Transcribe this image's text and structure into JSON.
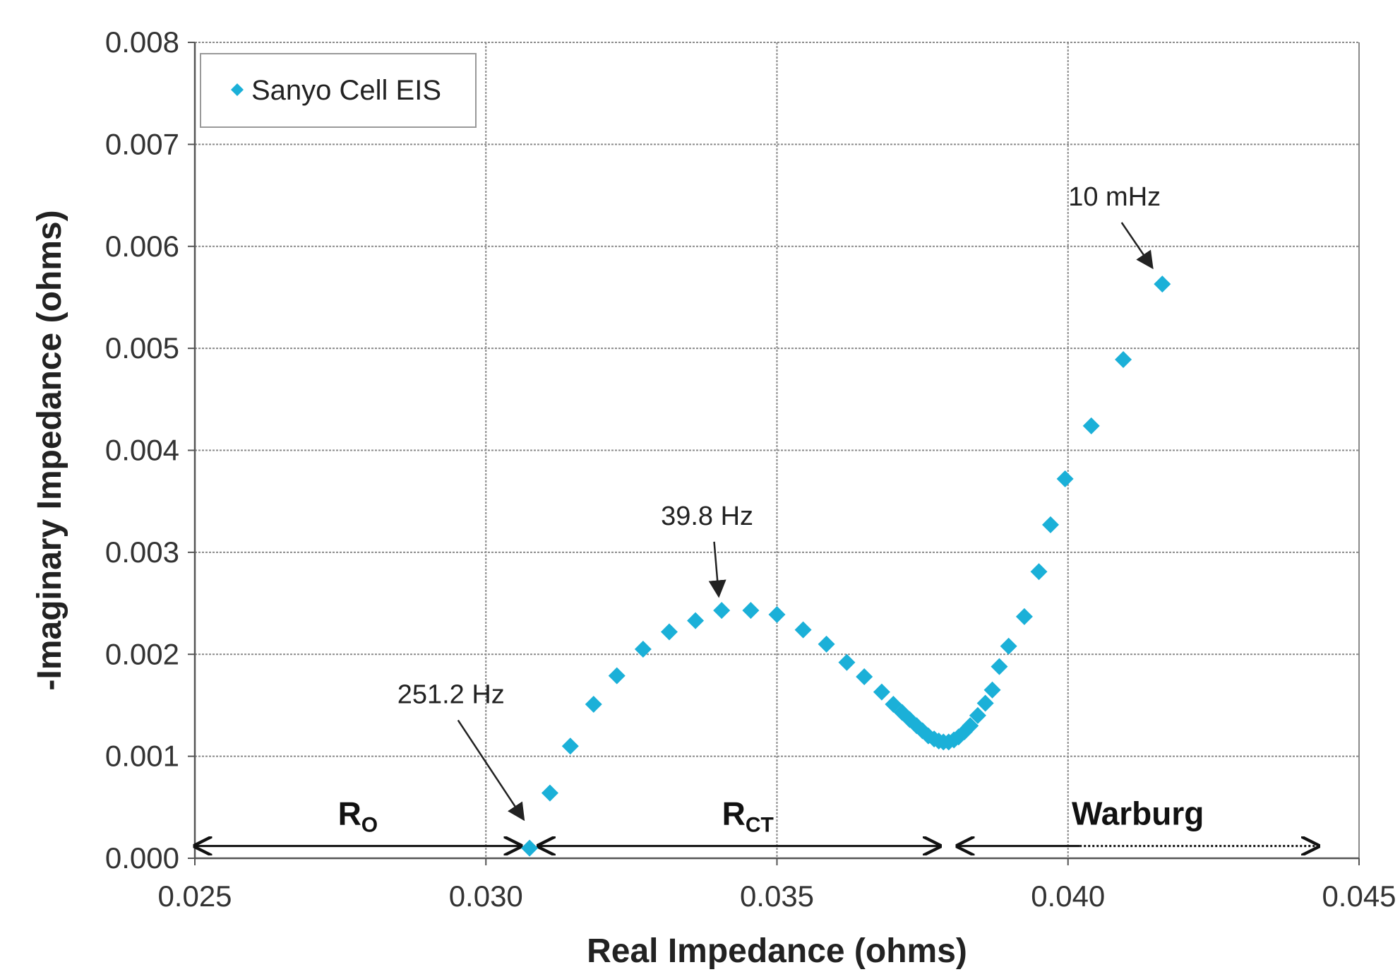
{
  "chart_data": {
    "type": "scatter",
    "xlabel": "Real Impedance (ohms)",
    "ylabel": "-Imaginary Impedance (ohms)",
    "xlim": [
      0.025,
      0.045
    ],
    "ylim": [
      0.0,
      0.008
    ],
    "x_ticks": [
      "0.025",
      "0.030",
      "0.035",
      "0.040",
      "0.045"
    ],
    "y_ticks": [
      "0.000",
      "0.001",
      "0.002",
      "0.003",
      "0.004",
      "0.005",
      "0.006",
      "0.007",
      "0.008"
    ],
    "grid": true,
    "legend_position": "top-left",
    "color": "#1bb0d8",
    "series": [
      {
        "name": "Sanyo Cell EIS",
        "points": [
          [
            0.03075,
            0.0001
          ],
          [
            0.0311,
            0.00064
          ],
          [
            0.03145,
            0.0011
          ],
          [
            0.03185,
            0.00151
          ],
          [
            0.03225,
            0.00179
          ],
          [
            0.0327,
            0.00205
          ],
          [
            0.03315,
            0.00222
          ],
          [
            0.0336,
            0.00233
          ],
          [
            0.03405,
            0.00243
          ],
          [
            0.03455,
            0.00243
          ],
          [
            0.035,
            0.00239
          ],
          [
            0.03545,
            0.00224
          ],
          [
            0.03585,
            0.0021
          ],
          [
            0.0362,
            0.00192
          ],
          [
            0.0365,
            0.00178
          ],
          [
            0.0368,
            0.00163
          ],
          [
            0.037,
            0.00151
          ],
          [
            0.03715,
            0.00143
          ],
          [
            0.03728,
            0.00136
          ],
          [
            0.0374,
            0.0013
          ],
          [
            0.0375,
            0.00125
          ],
          [
            0.0376,
            0.0012
          ],
          [
            0.0377,
            0.00117
          ],
          [
            0.03778,
            0.00115
          ],
          [
            0.03786,
            0.00114
          ],
          [
            0.03795,
            0.00114
          ],
          [
            0.03804,
            0.00116
          ],
          [
            0.03812,
            0.00119
          ],
          [
            0.03822,
            0.00124
          ],
          [
            0.03832,
            0.0013
          ],
          [
            0.03845,
            0.0014
          ],
          [
            0.03858,
            0.00152
          ],
          [
            0.0387,
            0.00165
          ],
          [
            0.03882,
            0.00188
          ],
          [
            0.03898,
            0.00208
          ],
          [
            0.03925,
            0.00237
          ],
          [
            0.0395,
            0.00281
          ],
          [
            0.0397,
            0.00327
          ],
          [
            0.03995,
            0.00372
          ],
          [
            0.0404,
            0.00424
          ],
          [
            0.04095,
            0.00489
          ],
          [
            0.04162,
            0.00563
          ]
        ]
      }
    ],
    "annotations": [
      {
        "text": "251.2 Hz",
        "text_x": 0.0294,
        "text_y": 0.00152,
        "point": [
          0.03065,
          0.00038
        ]
      },
      {
        "text": "39.8 Hz",
        "text_x": 0.0338,
        "text_y": 0.00327,
        "point": [
          0.034,
          0.00257
        ]
      },
      {
        "text": "10 mHz",
        "text_x": 0.0408,
        "text_y": 0.0064,
        "point": [
          0.04145,
          0.00579
        ]
      }
    ],
    "regions": [
      {
        "label": "R",
        "sub": "O",
        "start": 0.025,
        "end": 0.0306,
        "label_x": 0.0278,
        "style": "solid"
      },
      {
        "label": "R",
        "sub": "CT",
        "start": 0.0309,
        "end": 0.0378,
        "label_x": 0.0345,
        "style": "solid"
      },
      {
        "label": "Warburg",
        "sub": "",
        "start": 0.0381,
        "end": 0.0443,
        "label_x": 0.0412,
        "style": "mixed",
        "dotted_from": 0.0402
      }
    ],
    "region_y": 0.00012
  }
}
